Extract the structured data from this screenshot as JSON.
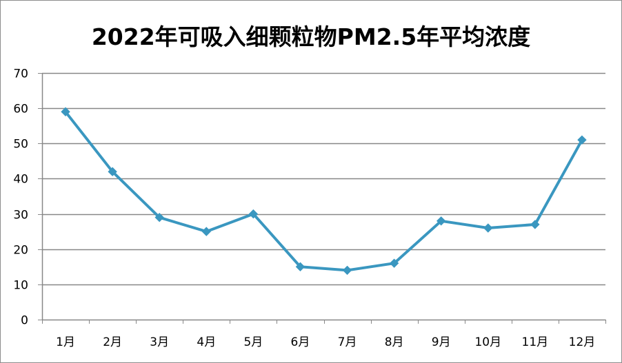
{
  "chart_data": {
    "type": "line",
    "title": "2022年可吸入细颗粒物PM2.5年平均浓度",
    "categories": [
      "1月",
      "2月",
      "3月",
      "4月",
      "5月",
      "6月",
      "7月",
      "8月",
      "9月",
      "10月",
      "11月",
      "12月"
    ],
    "series": [
      {
        "values": [
          59,
          42,
          29,
          25,
          30,
          15,
          14,
          16,
          28,
          26,
          27,
          51
        ]
      }
    ],
    "ylim": [
      0,
      70
    ],
    "yticks": [
      "0",
      "10",
      "20",
      "30",
      "40",
      "50",
      "60",
      "70"
    ],
    "grid": true,
    "legend": "none",
    "colors": {
      "line": "#3a97c0",
      "grid": "#878787",
      "axis": "#878787"
    },
    "marker": "diamond"
  }
}
